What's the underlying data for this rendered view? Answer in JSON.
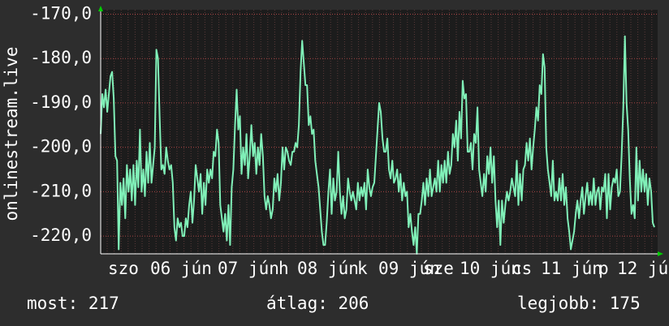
{
  "chart_data": {
    "type": "line",
    "y_label": "onlinestream.live",
    "color": "#80f0b8",
    "grid": true,
    "ylim": [
      -224,
      -169
    ],
    "yticks": [
      {
        "value": -170,
        "label": "-170,0"
      },
      {
        "value": -180,
        "label": "-180,0"
      },
      {
        "value": -190,
        "label": "-190,0"
      },
      {
        "value": -200,
        "label": "-200,0"
      },
      {
        "value": -210,
        "label": "-210,0"
      },
      {
        "value": -220,
        "label": "-220,0"
      }
    ],
    "x_labels": [
      "szo",
      "06 jún",
      "07 jún",
      "h",
      "08 jún",
      "k",
      "09 jún",
      "sze",
      "10 jún",
      "cs",
      "11 jún",
      "p",
      "12 jú"
    ],
    "stats": [
      "most: 217",
      "átlag: 206",
      "legjobb: 175"
    ],
    "values": [
      -197,
      -188,
      -191,
      -187,
      -192,
      -188,
      -184,
      -183,
      -189,
      -202,
      -203,
      -223,
      -208,
      -213,
      -207,
      -216,
      -204,
      -210,
      -205,
      -212,
      -204,
      -213,
      -203,
      -209,
      -196,
      -210,
      -205,
      -211,
      -201,
      -208,
      -199,
      -208,
      -204,
      -200,
      -178,
      -180,
      -193,
      -205,
      -204,
      -206,
      -200,
      -203,
      -205,
      -204,
      -208,
      -218,
      -221,
      -216,
      -218,
      -217,
      -220,
      -220,
      -216,
      -218,
      -213,
      -210,
      -217,
      -212,
      -204,
      -207,
      -210,
      -206,
      -215,
      -208,
      -213,
      -205,
      -208,
      -205,
      -207,
      -201,
      -202,
      -196,
      -199,
      -213,
      -216,
      -219,
      -215,
      -221,
      -213,
      -222,
      -209,
      -205,
      -195,
      -187,
      -196,
      -193,
      -206,
      -200,
      -204,
      -197,
      -207,
      -202,
      -195,
      -202,
      -199,
      -206,
      -200,
      -204,
      -197,
      -202,
      -211,
      -214,
      -211,
      -213,
      -216,
      -214,
      -207,
      -210,
      -206,
      -212,
      -208,
      -200,
      -205,
      -200,
      -201,
      -203,
      -204,
      -201,
      -201,
      -199,
      -200,
      -195,
      -183,
      -176,
      -181,
      -186,
      -186,
      -195,
      -193,
      -197,
      -196,
      -203,
      -206,
      -209,
      -214,
      -219,
      -222,
      -222,
      -217,
      -210,
      -205,
      -215,
      -207,
      -212,
      -210,
      -201,
      -210,
      -215,
      -211,
      -216,
      -214,
      -207,
      -210,
      -212,
      -210,
      -212,
      -214,
      -208,
      -212,
      -209,
      -211,
      -208,
      -214,
      -205,
      -209,
      -211,
      -209,
      -208,
      -202,
      -196,
      -190,
      -192,
      -198,
      -201,
      -201,
      -198,
      -205,
      -207,
      -203,
      -208,
      -207,
      -205,
      -210,
      -206,
      -212,
      -208,
      -211,
      -210,
      -218,
      -215,
      -219,
      -222,
      -218,
      -224,
      -215,
      -215,
      -212,
      -208,
      -213,
      -207,
      -211,
      -205,
      -211,
      -209,
      -207,
      -210,
      -203,
      -210,
      -204,
      -208,
      -203,
      -208,
      -201,
      -206,
      -204,
      -197,
      -200,
      -194,
      -203,
      -192,
      -198,
      -185,
      -189,
      -188,
      -201,
      -201,
      -199,
      -205,
      -197,
      -199,
      -191,
      -205,
      -208,
      -211,
      -206,
      -210,
      -202,
      -206,
      -200,
      -208,
      -202,
      -212,
      -218,
      -212,
      -222,
      -212,
      -217,
      -213,
      -210,
      -212,
      -210,
      -207,
      -209,
      -211,
      -203,
      -213,
      -206,
      -212,
      -205,
      -204,
      -199,
      -203,
      -198,
      -205,
      -200,
      -196,
      -191,
      -194,
      -186,
      -188,
      -179,
      -182,
      -200,
      -205,
      -208,
      -211,
      -203,
      -212,
      -210,
      -212,
      -207,
      -212,
      -206,
      -213,
      -209,
      -216,
      -219,
      -223,
      -221,
      -219,
      -215,
      -212,
      -216,
      -212,
      -209,
      -215,
      -211,
      -208,
      -213,
      -210,
      -213,
      -207,
      -213,
      -210,
      -209,
      -214,
      -209,
      -210,
      -206,
      -216,
      -206,
      -214,
      -209,
      -207,
      -208,
      -205,
      -211,
      -210,
      -202,
      -191,
      -175,
      -190,
      -196,
      -207,
      -215,
      -213,
      -216,
      -200,
      -212,
      -203,
      -210,
      -205,
      -210,
      -206,
      -213,
      -207,
      -210,
      -217,
      -218
    ]
  }
}
